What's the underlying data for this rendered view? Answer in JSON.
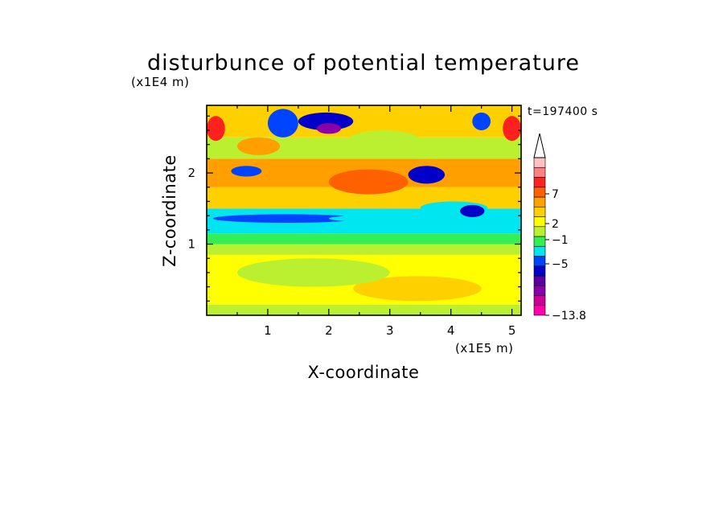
{
  "chart_data": {
    "type": "heatmap",
    "title": "disturbunce of potential temperature",
    "time_label": "t=197400 s",
    "xlabel": "X-coordinate",
    "ylabel": "Z-coordinate",
    "x_unit": "(x1E5 m)",
    "y_unit": "(x1E4 m)",
    "xlim": [
      0,
      5.15
    ],
    "ylim": [
      0,
      2.95
    ],
    "xticks": [
      "1",
      "2",
      "3",
      "4",
      "5"
    ],
    "yticks": [
      "1",
      "2"
    ],
    "colorbar": {
      "labels": [
        "7",
        "2",
        "−1",
        "−5",
        "−13.8"
      ],
      "colors": [
        "#ff00aa",
        "#cc0099",
        "#8a00a8",
        "#5a00a0",
        "#0000c8",
        "#0044ff",
        "#00e6f0",
        "#33ee55",
        "#bbf030",
        "#ffff00",
        "#ffd000",
        "#ffa000",
        "#ff6000",
        "#ff2020",
        "#ff8080",
        "#ffc0c0"
      ],
      "extend": "max"
    },
    "rows": [
      {
        "z": [
          0.0,
          0.15
        ],
        "color": "#bbf030"
      },
      {
        "z": [
          0.15,
          0.85
        ],
        "color": "#ffff00"
      },
      {
        "z": [
          0.85,
          1.0
        ],
        "color": "#bbf030"
      },
      {
        "z": [
          1.0,
          1.15
        ],
        "color": "#33ee55"
      },
      {
        "z": [
          1.15,
          1.5
        ],
        "color": "#00e6f0"
      },
      {
        "z": [
          1.5,
          1.8
        ],
        "color": "#ffd000"
      },
      {
        "z": [
          1.8,
          2.2
        ],
        "color": "#ffa000"
      },
      {
        "z": [
          2.2,
          2.5
        ],
        "color": "#bbf030"
      },
      {
        "z": [
          2.5,
          2.95
        ],
        "color": "#ffd000"
      }
    ],
    "features": [
      {
        "x": [
          2.4,
          4.5
        ],
        "z": [
          0.2,
          0.55
        ],
        "color": "#ffd000"
      },
      {
        "x": [
          0.5,
          3.0
        ],
        "z": [
          0.4,
          0.8
        ],
        "color": "#bbf030"
      },
      {
        "x": [
          0.1,
          2.5
        ],
        "z": [
          1.3,
          1.42
        ],
        "color": "#0044ff"
      },
      {
        "x": [
          2.0,
          4.6
        ],
        "z": [
          1.3,
          1.42
        ],
        "color": "#00e6f0"
      },
      {
        "x": [
          3.5,
          4.6
        ],
        "z": [
          1.42,
          1.6
        ],
        "color": "#00e6f0"
      },
      {
        "x": [
          4.15,
          4.55
        ],
        "z": [
          1.38,
          1.55
        ],
        "color": "#0000c8"
      },
      {
        "x": [
          0.4,
          0.9
        ],
        "z": [
          1.95,
          2.1
        ],
        "color": "#0044ff"
      },
      {
        "x": [
          3.3,
          3.9
        ],
        "z": [
          1.85,
          2.1
        ],
        "color": "#0000c8"
      },
      {
        "x": [
          1.5,
          2.4
        ],
        "z": [
          2.6,
          2.85
        ],
        "color": "#0000c8"
      },
      {
        "x": [
          1.8,
          2.2
        ],
        "z": [
          2.55,
          2.7
        ],
        "color": "#8a00a8"
      },
      {
        "x": [
          1.0,
          1.5
        ],
        "z": [
          2.5,
          2.9
        ],
        "color": "#0044ff"
      },
      {
        "x": [
          4.35,
          4.65
        ],
        "z": [
          2.6,
          2.85
        ],
        "color": "#0044ff"
      },
      {
        "x": [
          0.0,
          0.3
        ],
        "z": [
          2.45,
          2.8
        ],
        "color": "#ff2020"
      },
      {
        "x": [
          4.85,
          5.15
        ],
        "z": [
          2.45,
          2.8
        ],
        "color": "#ff2020"
      },
      {
        "x": [
          2.0,
          3.3
        ],
        "z": [
          1.7,
          2.05
        ],
        "color": "#ff6000"
      },
      {
        "x": [
          0.5,
          1.2
        ],
        "z": [
          2.25,
          2.5
        ],
        "color": "#ffa000"
      },
      {
        "x": [
          2.3,
          3.5
        ],
        "z": [
          2.3,
          2.6
        ],
        "color": "#bbf030"
      }
    ]
  }
}
